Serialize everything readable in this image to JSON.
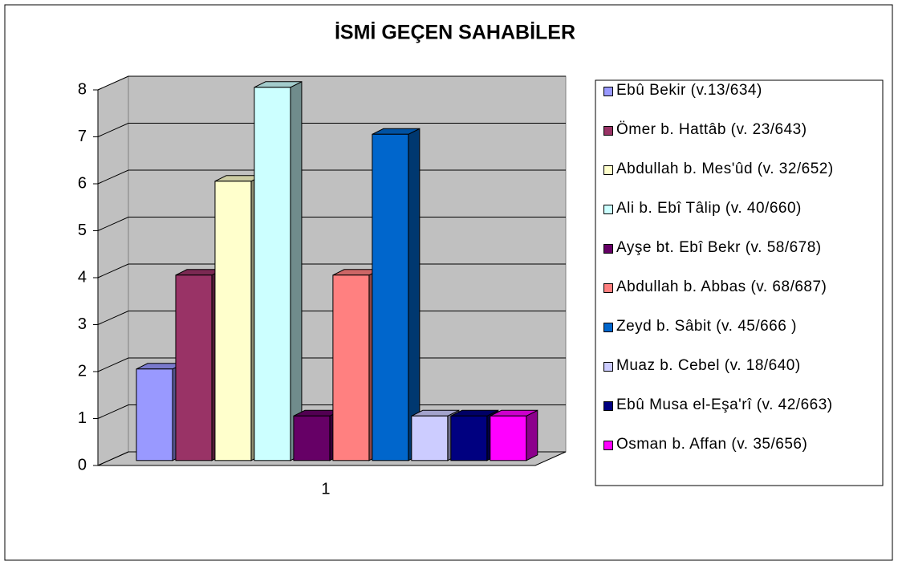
{
  "chart_data": {
    "type": "bar3d",
    "title": "İSMİ GEÇEN SAHABİLER",
    "categories": [
      "1"
    ],
    "series": [
      {
        "name": "Ebû Bekir (v.13/634)",
        "color": "#9999ff",
        "values": [
          2
        ]
      },
      {
        "name": "Ömer b. Hattâb (v. 23/643)",
        "color": "#993366",
        "values": [
          4
        ]
      },
      {
        "name": "Abdullah b. Mes'ûd (v. 32/652)",
        "color": "#ffffcc",
        "values": [
          6
        ]
      },
      {
        "name": "Ali b. Ebî Tâlip (v. 40/660)",
        "color": "#ccffff",
        "values": [
          8
        ]
      },
      {
        "name": "Ayşe bt. Ebî Bekr (v. 58/678)",
        "color": "#660066",
        "values": [
          1
        ]
      },
      {
        "name": "Abdullah b. Abbas (v. 68/687)",
        "color": "#ff8080",
        "values": [
          4
        ]
      },
      {
        "name": "Zeyd b. Sâbit (v. 45/666 )",
        "color": "#0066cc",
        "values": [
          7
        ]
      },
      {
        "name": "Muaz b. Cebel (v. 18/640)",
        "color": "#ccccff",
        "values": [
          1
        ]
      },
      {
        "name": "Ebû Musa el-Eşa'rî (v. 42/663)",
        "color": "#000080",
        "values": [
          1
        ]
      },
      {
        "name": "Osman b. Affan (v. 35/656)",
        "color": "#ff00ff",
        "values": [
          1
        ]
      }
    ],
    "ylim": [
      0,
      8
    ],
    "yticks": [
      0,
      1,
      2,
      3,
      4,
      5,
      6,
      7,
      8
    ],
    "grid": true,
    "legend": "right"
  }
}
